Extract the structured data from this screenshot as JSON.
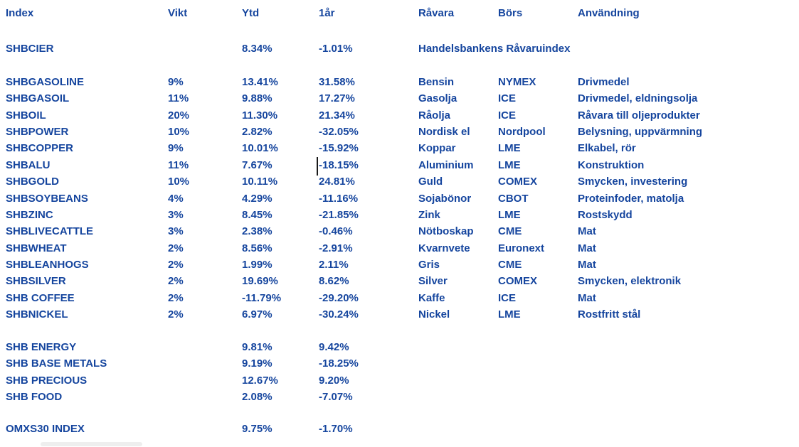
{
  "colors": {
    "text_blue": "#15459E",
    "caret_black": "#1a1a1a",
    "scrollbar_grey": "#eeeeee",
    "background": "#ffffff"
  },
  "header": {
    "index": "Index",
    "vikt": "Vikt",
    "ytd": "Ytd",
    "one_year": "1år",
    "ravara": "Råvara",
    "bors": "Börs",
    "anvandning": "Användning"
  },
  "cier_row": {
    "index": "SHBCIER",
    "vikt": "",
    "ytd": "8.34%",
    "one_year": "-1.01%",
    "note": "Handelsbankens Råvaruindex"
  },
  "commodity_rows": [
    {
      "index": "SHBGASOLINE",
      "vikt": "9%",
      "ytd": "13.41%",
      "one_year": "31.58%",
      "ravara": "Bensin",
      "bors": "NYMEX",
      "anvandning": "Drivmedel"
    },
    {
      "index": "SHBGASOIL",
      "vikt": "11%",
      "ytd": "9.88%",
      "one_year": "17.27%",
      "ravara": "Gasolja",
      "bors": "ICE",
      "anvandning": "Drivmedel, eldningsolja"
    },
    {
      "index": "SHBOIL",
      "vikt": "20%",
      "ytd": "11.30%",
      "one_year": "21.34%",
      "ravara": "Råolja",
      "bors": "ICE",
      "anvandning": "Råvara till oljeprodukter"
    },
    {
      "index": "SHBPOWER",
      "vikt": "10%",
      "ytd": "2.82%",
      "one_year": "-32.05%",
      "ravara": "Nordisk el",
      "bors": "Nordpool",
      "anvandning": "Belysning, uppvärmning"
    },
    {
      "index": "SHBCOPPER",
      "vikt": "9%",
      "ytd": "10.01%",
      "one_year": "-15.92%",
      "ravara": "Koppar",
      "bors": "LME",
      "anvandning": "Elkabel, rör"
    },
    {
      "index": "SHBALU",
      "vikt": "11%",
      "ytd": "7.67%",
      "one_year": "-18.15%",
      "ravara": "Aluminium",
      "bors": "LME",
      "anvandning": "Konstruktion"
    },
    {
      "index": "SHBGOLD",
      "vikt": "10%",
      "ytd": "10.11%",
      "one_year": "24.81%",
      "ravara": "Guld",
      "bors": "COMEX",
      "anvandning": "Smycken, investering"
    },
    {
      "index": "SHBSOYBEANS",
      "vikt": "4%",
      "ytd": "4.29%",
      "one_year": "-11.16%",
      "ravara": "Sojabönor",
      "bors": "CBOT",
      "anvandning": "Proteinfoder, matolja"
    },
    {
      "index": "SHBZINC",
      "vikt": "3%",
      "ytd": "8.45%",
      "one_year": "-21.85%",
      "ravara": "Zink",
      "bors": "LME",
      "anvandning": "Rostskydd"
    },
    {
      "index": "SHBLIVECATTLE",
      "vikt": "3%",
      "ytd": "2.38%",
      "one_year": "-0.46%",
      "ravara": "Nötboskap",
      "bors": "CME",
      "anvandning": "Mat"
    },
    {
      "index": "SHBWHEAT",
      "vikt": "2%",
      "ytd": "8.56%",
      "one_year": "-2.91%",
      "ravara": "Kvarnvete",
      "bors": "Euronext",
      "anvandning": "Mat"
    },
    {
      "index": "SHBLEANHOGS",
      "vikt": "2%",
      "ytd": "1.99%",
      "one_year": "2.11%",
      "ravara": "Gris",
      "bors": "CME",
      "anvandning": "Mat"
    },
    {
      "index": "SHBSILVER",
      "vikt": "2%",
      "ytd": "19.69%",
      "one_year": "8.62%",
      "ravara": "Silver",
      "bors": "COMEX",
      "anvandning": "Smycken, elektronik"
    },
    {
      "index": "SHB COFFEE",
      "vikt": "2%",
      "ytd": "-11.79%",
      "one_year": "-29.20%",
      "ravara": "Kaffe",
      "bors": "ICE",
      "anvandning": "Mat"
    },
    {
      "index": "SHBNICKEL",
      "vikt": "2%",
      "ytd": "6.97%",
      "one_year": "-30.24%",
      "ravara": "Nickel",
      "bors": "LME",
      "anvandning": "Rostfritt stål"
    }
  ],
  "group_rows": [
    {
      "index": "SHB ENERGY",
      "ytd": "9.81%",
      "one_year": "9.42%"
    },
    {
      "index": "SHB BASE METALS",
      "ytd": "9.19%",
      "one_year": "-18.25%"
    },
    {
      "index": "SHB PRECIOUS",
      "ytd": "12.67%",
      "one_year": "9.20%"
    },
    {
      "index": "SHB FOOD",
      "ytd": "2.08%",
      "one_year": "-7.07%"
    }
  ],
  "omx_row": {
    "index": "OMXS30 INDEX",
    "ytd": "9.75%",
    "one_year": "-1.70%"
  }
}
